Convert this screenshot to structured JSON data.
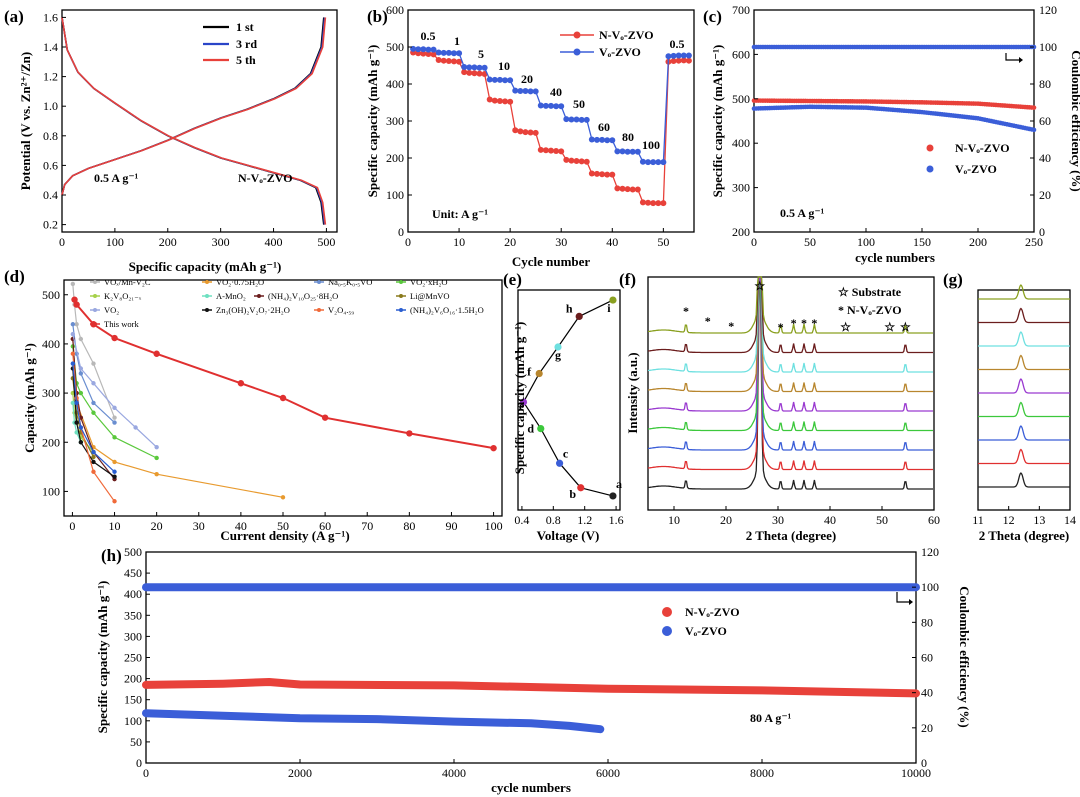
{
  "figure": {
    "panel_labels": [
      "(a)",
      "(b)",
      "(c)",
      "(d)",
      "(e)",
      "(f)",
      "(g)",
      "(h)"
    ]
  },
  "chart_data": [
    {
      "id": "a",
      "type": "line",
      "xlabel": "Specific capacity (mAh g⁻¹)",
      "ylabel": "Potential (V vs. Zn²⁺/Zn)",
      "xlim": [
        0,
        520
      ],
      "ylim": [
        0.15,
        1.65
      ],
      "xticks": [
        "0",
        "100",
        "200",
        "300",
        "400",
        "500"
      ],
      "yticks": [
        "0.2",
        "0.4",
        "0.6",
        "0.8",
        "1.0",
        "1.2",
        "1.4",
        "1.6"
      ],
      "annotations": [
        "0.5 A g⁻¹",
        "N-Vₒ-ZVO"
      ],
      "series": [
        {
          "name": "1 st",
          "color": "#000000"
        },
        {
          "name": "3 rd",
          "color": "#2a45c8"
        },
        {
          "name": "5 th",
          "color": "#e8413a"
        }
      ],
      "discharge": {
        "x": [
          0,
          10,
          30,
          60,
          100,
          150,
          200,
          250,
          300,
          350,
          400,
          450,
          480,
          490,
          495
        ],
        "y": [
          1.6,
          1.38,
          1.23,
          1.12,
          1.02,
          0.9,
          0.8,
          0.72,
          0.65,
          0.6,
          0.55,
          0.5,
          0.45,
          0.35,
          0.2
        ]
      },
      "charge": {
        "x": [
          0,
          5,
          20,
          50,
          100,
          150,
          200,
          250,
          300,
          350,
          400,
          440,
          470,
          490,
          495
        ],
        "y": [
          0.4,
          0.47,
          0.53,
          0.58,
          0.64,
          0.7,
          0.77,
          0.85,
          0.92,
          0.98,
          1.05,
          1.12,
          1.22,
          1.4,
          1.6
        ]
      }
    },
    {
      "id": "b",
      "type": "scatter",
      "xlabel": "Cycle number",
      "ylabel": "Specific capacity (mAh g⁻¹)",
      "xlim": [
        0,
        56
      ],
      "ylim": [
        0,
        600
      ],
      "xticks": [
        "0",
        "10",
        "20",
        "30",
        "40",
        "50"
      ],
      "yticks": [
        "0",
        "100",
        "200",
        "300",
        "400",
        "500",
        "600"
      ],
      "unit_label": "Unit: A g⁻¹",
      "rate_labels": [
        "0.5",
        "1",
        "5",
        "10",
        "20",
        "40",
        "50",
        "60",
        "80",
        "100",
        "0.5"
      ],
      "series": [
        {
          "name": "N-Vₒ-ZVO",
          "color": "#e8413a",
          "x": [
            1,
            2,
            3,
            4,
            5,
            6,
            7,
            8,
            9,
            10,
            11,
            12,
            13,
            14,
            15,
            16,
            17,
            18,
            19,
            20,
            21,
            22,
            23,
            24,
            25,
            26,
            27,
            28,
            29,
            30,
            31,
            32,
            33,
            34,
            35,
            36,
            37,
            38,
            39,
            40,
            41,
            42,
            43,
            44,
            45,
            46,
            47,
            48,
            49,
            50,
            51,
            52,
            53,
            54,
            55
          ],
          "y": [
            485,
            483,
            482,
            481,
            480,
            465,
            463,
            462,
            461,
            460,
            432,
            430,
            429,
            428,
            427,
            358,
            355,
            354,
            353,
            352,
            275,
            272,
            270,
            269,
            268,
            222,
            221,
            220,
            219,
            218,
            195,
            193,
            192,
            191,
            190,
            158,
            157,
            156,
            155,
            155,
            118,
            117,
            116,
            115,
            115,
            80,
            79,
            78,
            78,
            78,
            460,
            462,
            463,
            464,
            463
          ]
        },
        {
          "name": "Vₒ-ZVO",
          "color": "#3b5ed8",
          "x": [
            1,
            2,
            3,
            4,
            5,
            6,
            7,
            8,
            9,
            10,
            11,
            12,
            13,
            14,
            15,
            16,
            17,
            18,
            19,
            20,
            21,
            22,
            23,
            24,
            25,
            26,
            27,
            28,
            29,
            30,
            31,
            32,
            33,
            34,
            35,
            36,
            37,
            38,
            39,
            40,
            41,
            42,
            43,
            44,
            45,
            46,
            47,
            48,
            49,
            50,
            51,
            52,
            53,
            54,
            55
          ],
          "y": [
            495,
            494,
            494,
            493,
            493,
            485,
            484,
            484,
            483,
            483,
            446,
            445,
            445,
            444,
            444,
            412,
            411,
            411,
            410,
            410,
            382,
            381,
            381,
            380,
            380,
            342,
            341,
            341,
            340,
            340,
            305,
            304,
            304,
            303,
            303,
            250,
            249,
            249,
            248,
            248,
            218,
            218,
            217,
            217,
            217,
            190,
            189,
            189,
            189,
            189,
            475,
            476,
            477,
            477,
            477
          ]
        }
      ]
    },
    {
      "id": "c",
      "type": "scatter",
      "xlabel": "cycle numbers",
      "ylabel": "Specific capacity (mAh g⁻¹)",
      "y2label": "Coulombic efficiency (%)",
      "xlim": [
        0,
        250
      ],
      "ylim": [
        200,
        700
      ],
      "y2lim": [
        0,
        120
      ],
      "xticks": [
        "0",
        "50",
        "100",
        "150",
        "200",
        "250"
      ],
      "yticks": [
        "200",
        "300",
        "400",
        "500",
        "600",
        "700"
      ],
      "y2ticks": [
        "0",
        "20",
        "40",
        "60",
        "80",
        "100",
        "120"
      ],
      "annotation": "0.5 A g⁻¹",
      "series": [
        {
          "name": "N-Vₒ-ZVO",
          "color": "#e8413a",
          "x": [
            0,
            50,
            100,
            150,
            200,
            250
          ],
          "y": [
            496,
            495,
            494,
            492,
            489,
            480
          ]
        },
        {
          "name": "Vₒ-ZVO",
          "color": "#3b5ed8",
          "x": [
            0,
            50,
            100,
            150,
            200,
            250
          ],
          "y": [
            478,
            482,
            480,
            470,
            456,
            430
          ]
        },
        {
          "name": "Coulombic efficiency",
          "color": "#3b5ed8",
          "x": [
            0,
            250
          ],
          "y": [
            100,
            100
          ]
        }
      ]
    },
    {
      "id": "d",
      "type": "line",
      "xlabel": "Current density (A g⁻¹)",
      "ylabel": "Capacity (mAh g⁻¹)",
      "xlim": [
        -2,
        102
      ],
      "ylim": [
        50,
        530
      ],
      "xticks": [
        "0",
        "10",
        "20",
        "30",
        "40",
        "50",
        "60",
        "70",
        "80",
        "90",
        "100"
      ],
      "yticks": [
        "100",
        "200",
        "300",
        "400",
        "500"
      ],
      "series": [
        {
          "name": "VOₓ/Mn-V₂C",
          "color": "#b8b8b8",
          "x": [
            0.1,
            0.5,
            1,
            2,
            5,
            10
          ],
          "y": [
            522,
            480,
            440,
            410,
            360,
            250
          ]
        },
        {
          "name": "VO₂·0.75H₂O",
          "color": "#e89a2e",
          "x": [
            0.1,
            1,
            5,
            10,
            20,
            50
          ],
          "y": [
            410,
            280,
            190,
            160,
            135,
            88
          ]
        },
        {
          "name": "Na₀.₅K₀.₅VO",
          "color": "#6a8ed0",
          "x": [
            0.1,
            1,
            2,
            5,
            10
          ],
          "y": [
            440,
            380,
            340,
            280,
            240
          ]
        },
        {
          "name": "VO₂·xH₂O",
          "color": "#5ac83c",
          "x": [
            0.1,
            1,
            2,
            5,
            10,
            20
          ],
          "y": [
            395,
            320,
            300,
            260,
            210,
            168
          ]
        },
        {
          "name": "K₂V₈O₂₁₋ₓ",
          "color": "#a6d14a",
          "x": [
            0.1,
            0.5,
            1,
            2,
            5
          ],
          "y": [
            300,
            260,
            240,
            210,
            180
          ]
        },
        {
          "name": "A-MnO₂",
          "color": "#6ee0c0",
          "x": [
            0.1,
            0.5,
            1,
            2
          ],
          "y": [
            280,
            240,
            220,
            200
          ]
        },
        {
          "name": "(NH₄)₂V₁₀O₂₅·8H₂O",
          "color": "#6b1d1d",
          "x": [
            0.1,
            1,
            2,
            5,
            10
          ],
          "y": [
            410,
            300,
            250,
            180,
            125
          ]
        },
        {
          "name": "Li@MnVO",
          "color": "#8a7a1c",
          "x": [
            0.1,
            1,
            2,
            5
          ],
          "y": [
            330,
            260,
            220,
            170
          ]
        },
        {
          "name": "VO₂",
          "color": "#9aa8e0",
          "x": [
            0.1,
            2,
            5,
            10,
            15,
            20
          ],
          "y": [
            420,
            350,
            320,
            270,
            230,
            190
          ]
        },
        {
          "name": "Zn₃(OH)₂V₂O₇·2H₂O",
          "color": "#111111",
          "x": [
            0.1,
            1,
            2,
            5,
            10
          ],
          "y": [
            350,
            240,
            200,
            160,
            130
          ]
        },
        {
          "name": "V₂O₄.₅₉",
          "color": "#f06a3a",
          "x": [
            0.1,
            1,
            2,
            5,
            10
          ],
          "y": [
            380,
            290,
            230,
            140,
            80
          ]
        },
        {
          "name": "(NH₄)₂V₆O₁₆·1.5H₂O",
          "color": "#2a5ed0",
          "x": [
            0.1,
            1,
            2,
            5,
            10
          ],
          "y": [
            360,
            280,
            230,
            180,
            140
          ]
        },
        {
          "name": "This work",
          "color": "#e03030",
          "x": [
            0.5,
            1,
            5,
            10,
            20,
            40,
            50,
            60,
            80,
            100
          ],
          "y": [
            490,
            480,
            440,
            412,
            380,
            320,
            290,
            250,
            218,
            188
          ]
        }
      ]
    },
    {
      "id": "e",
      "type": "scatter",
      "xlabel": "Voltage (V)",
      "ylabel": "Specific capacity (mAh g⁻¹)",
      "xlim": [
        0.35,
        1.65
      ],
      "xticks": [
        "0.4",
        "0.8",
        "1.2",
        "1.6"
      ],
      "points": [
        {
          "label": "a",
          "x": 1.56,
          "y": 0.02,
          "color": "#222222"
        },
        {
          "label": "b",
          "x": 1.15,
          "y": 0.06,
          "color": "#e03030"
        },
        {
          "label": "c",
          "x": 0.88,
          "y": 0.18,
          "color": "#3b5ed8"
        },
        {
          "label": "d",
          "x": 0.64,
          "y": 0.35,
          "color": "#3cc83c"
        },
        {
          "label": "e",
          "x": 0.42,
          "y": 0.48,
          "color": "#9a3ad0"
        },
        {
          "label": "f",
          "x": 0.62,
          "y": 0.62,
          "color": "#b8862e"
        },
        {
          "label": "g",
          "x": 0.86,
          "y": 0.75,
          "color": "#6ee0e0"
        },
        {
          "label": "h",
          "x": 1.13,
          "y": 0.9,
          "color": "#6b1d1d"
        },
        {
          "label": "i",
          "x": 1.56,
          "y": 0.98,
          "color": "#8aa020"
        }
      ]
    },
    {
      "id": "f",
      "type": "line",
      "xlabel": "2 Theta (degree)",
      "ylabel": "Intensity (a.u.)",
      "xlim": [
        5,
        60
      ],
      "xticks": [
        "10",
        "20",
        "30",
        "40",
        "50",
        "60"
      ],
      "legend": [
        "☆ Substrate",
        "* N-Vₒ-ZVO"
      ],
      "peak_markers": {
        "star": [
          26.5,
          43,
          51.5,
          54.5
        ],
        "asterisk": [
          12.3,
          16.5,
          21,
          30.5,
          33,
          35,
          37
        ]
      },
      "main_peak": 26.5,
      "minor_peaks": [
        12.3,
        30.5,
        33,
        35,
        37,
        54.5
      ],
      "series_colors": [
        "#222222",
        "#e03030",
        "#3b5ed8",
        "#3cc83c",
        "#9a3ad0",
        "#b8862e",
        "#6ee0e0",
        "#6b1d1d",
        "#8aa020"
      ]
    },
    {
      "id": "g",
      "type": "line",
      "xlabel": "2 Theta (degree)",
      "xlim": [
        11,
        14
      ],
      "xticks": [
        "11",
        "12",
        "13",
        "14"
      ],
      "peak": 12.4,
      "series_colors": [
        "#222222",
        "#e03030",
        "#3b5ed8",
        "#3cc83c",
        "#9a3ad0",
        "#b8862e",
        "#6ee0e0",
        "#6b1d1d",
        "#8aa020"
      ]
    },
    {
      "id": "h",
      "type": "scatter",
      "xlabel": "cycle numbers",
      "ylabel": "Specific capacity (mAh g⁻¹)",
      "y2label": "Coulombic efficiency (%)",
      "xlim": [
        0,
        10000
      ],
      "ylim": [
        0,
        500
      ],
      "y2lim": [
        0,
        120
      ],
      "xticks": [
        "0",
        "2000",
        "4000",
        "6000",
        "8000",
        "10000"
      ],
      "yticks": [
        "0",
        "50",
        "100",
        "150",
        "200",
        "250",
        "300",
        "350",
        "400",
        "450",
        "500"
      ],
      "y2ticks": [
        "0",
        "20",
        "40",
        "60",
        "80",
        "100",
        "120"
      ],
      "annotation": "80 A g⁻¹",
      "series": [
        {
          "name": "N-Vₒ-ZVO",
          "color": "#e8413a",
          "x": [
            0,
            1000,
            1600,
            2000,
            4000,
            6000,
            8000,
            10000
          ],
          "y": [
            185,
            188,
            192,
            186,
            184,
            176,
            172,
            165
          ]
        },
        {
          "name": "Vₒ-ZVO",
          "color": "#3b5ed8",
          "x": [
            0,
            1000,
            2000,
            3000,
            4000,
            5000,
            5500,
            5900
          ],
          "y": [
            118,
            112,
            106,
            104,
            98,
            94,
            88,
            80
          ]
        },
        {
          "name": "Coulombic efficiency",
          "color": "#3b5ed8",
          "x": [
            0,
            10000
          ],
          "y": [
            100,
            100
          ]
        }
      ]
    }
  ]
}
